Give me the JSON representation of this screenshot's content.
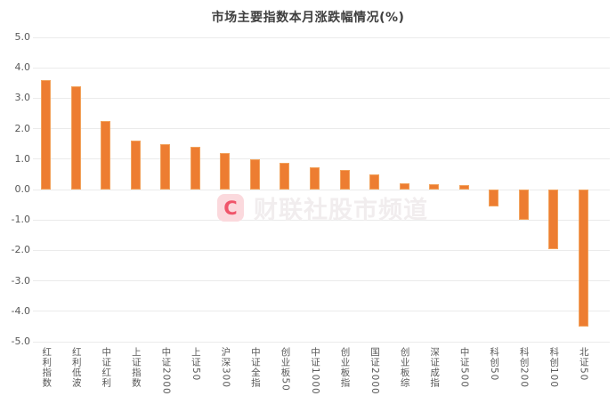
{
  "watermark": {
    "logo_letter": "C",
    "text": "财联社股市频道"
  },
  "chart_data": {
    "type": "bar",
    "title": "市场主要指数本月涨跌幅情况(%)",
    "categories": [
      "红利指数",
      "红利低波",
      "中证红利",
      "上证指数",
      "中证2000",
      "上证50",
      "沪深300",
      "中证全指",
      "创业板50",
      "中证1000",
      "创业板指",
      "国证2000",
      "创业板综",
      "深证成指",
      "中证500",
      "科创50",
      "科创200",
      "科创100",
      "北证50"
    ],
    "values": [
      3.6,
      3.4,
      2.25,
      1.6,
      1.5,
      1.4,
      1.2,
      1.0,
      0.87,
      0.73,
      0.63,
      0.5,
      0.2,
      0.17,
      0.15,
      -0.57,
      -1.0,
      -1.95,
      -4.5
    ],
    "xlabel": "",
    "ylabel": "",
    "ylim": [
      -5.0,
      5.0
    ],
    "y_ticks": [
      "5.0",
      "4.0",
      "3.0",
      "2.0",
      "1.0",
      "0.0",
      "-1.0",
      "-2.0",
      "-3.0",
      "-4.0",
      "-5.0"
    ],
    "bar_color": "#ED7D31",
    "grid": true,
    "legend_position": "none"
  }
}
